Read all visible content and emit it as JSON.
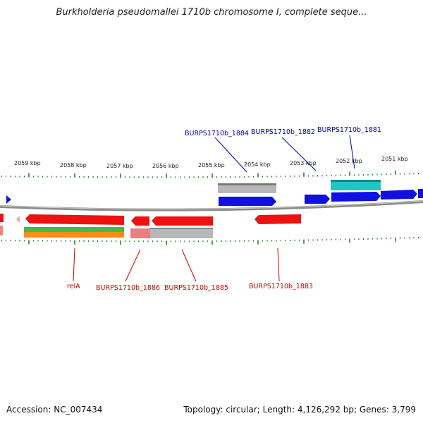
{
  "title": "Burkholderia pseudomallei 1710b chromosome I, complete seque...",
  "footer": {
    "accession": "Accession: NC_007434",
    "summary": "Topology: circular; Length: 4,126,292 bp; Genes: 3,799"
  },
  "ruler": [
    "2059 kbp",
    "2058 kbp",
    "2057 kbp",
    "2056 kbp",
    "2055 kbp",
    "2054 kbp",
    "2053 kbp",
    "2052 kbp",
    "2051 kbp"
  ],
  "labels_top": [
    "BURPS1710b_1884",
    "BURPS1710b_1882",
    "BURPS1710b_1881"
  ],
  "labels_bottom": [
    "relA",
    "BURPS1710b_1886",
    "BURPS1710b_1885",
    "BURPS1710b_1883"
  ],
  "colors": {
    "forward": "#1010e0",
    "reverse": "#ee1111",
    "top_label": "#0000aa",
    "bottom_label": "#cc0000",
    "tick": "#1a7a1a",
    "gray_track": "#b8b8b8",
    "cyan_track": "#22c4c4",
    "green_track": "#44bb44",
    "orange_track": "#ff8c1a",
    "backbone": "#8a8a8a"
  }
}
